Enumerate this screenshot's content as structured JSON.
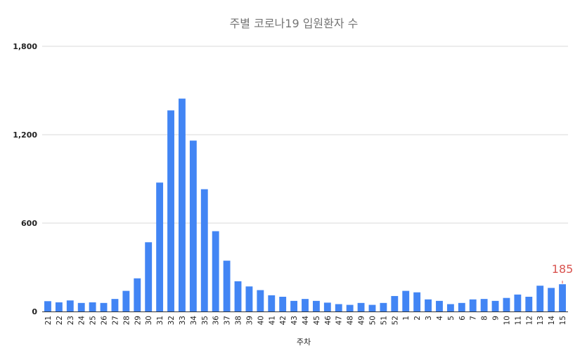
{
  "chart_data": {
    "type": "bar",
    "title": "주별 코로나19 입원환자 수",
    "xlabel": "주차",
    "ylabel": "",
    "ylim": [
      0,
      1800
    ],
    "yticks": [
      "0",
      "600",
      "1,200",
      "1,800"
    ],
    "grid": true,
    "legend": "none",
    "bar_color": "#4285f4",
    "annotation_color": "#d9534f",
    "categories": [
      "21",
      "22",
      "23",
      "24",
      "25",
      "26",
      "27",
      "28",
      "29",
      "30",
      "31",
      "32",
      "33",
      "34",
      "35",
      "36",
      "37",
      "38",
      "39",
      "40",
      "41",
      "42",
      "43",
      "44",
      "45",
      "46",
      "47",
      "48",
      "49",
      "50",
      "51",
      "52",
      "1",
      "2",
      "3",
      "4",
      "5",
      "6",
      "7",
      "8",
      "9",
      "10",
      "11",
      "12",
      "13",
      "14",
      "15"
    ],
    "values": [
      70,
      62,
      75,
      58,
      62,
      58,
      85,
      140,
      225,
      470,
      875,
      1365,
      1445,
      1160,
      830,
      545,
      345,
      205,
      170,
      145,
      110,
      100,
      72,
      85,
      72,
      60,
      50,
      45,
      58,
      45,
      58,
      105,
      140,
      130,
      82,
      72,
      50,
      58,
      82,
      85,
      72,
      92,
      115,
      100,
      175,
      160,
      185
    ],
    "annotations": [
      {
        "category": "15",
        "text": "185"
      }
    ]
  }
}
